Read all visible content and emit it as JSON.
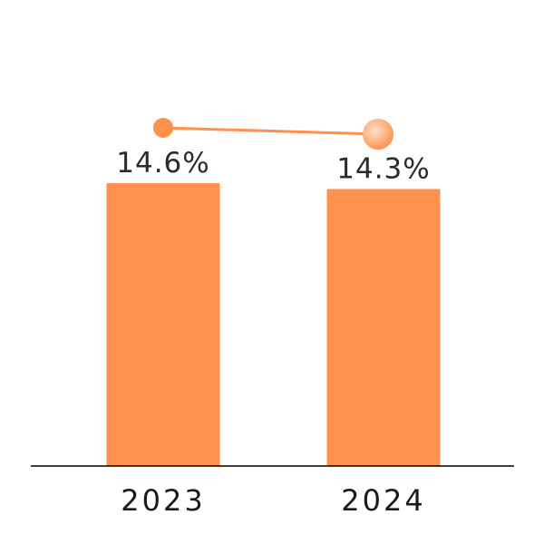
{
  "chart_data": {
    "type": "bar",
    "categories": [
      "2023",
      "2024"
    ],
    "values": [
      14.6,
      14.3
    ],
    "value_labels": [
      "14.6%",
      "14.3%"
    ],
    "title": "",
    "xlabel": "",
    "ylabel": "",
    "ylim": [
      0,
      16.1
    ],
    "grid": false,
    "legend": "none",
    "trend_line": {
      "shown": true,
      "points": [
        14.6,
        14.3
      ]
    },
    "colors": {
      "bar": "#FF914D",
      "trend_line": "#FF914D",
      "marker_start": "#FF914D",
      "marker_end_center": "#FFE1CC",
      "marker_end_edge": "#FF914D",
      "axis": "#000000"
    }
  }
}
